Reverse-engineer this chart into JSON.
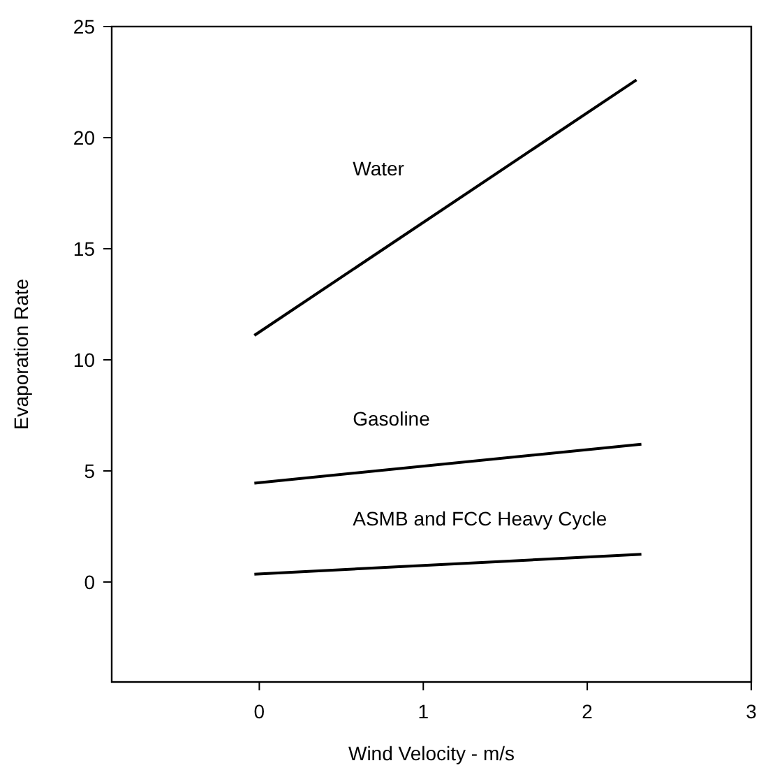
{
  "chart_data": {
    "type": "line",
    "xlabel": "Wind Velocity - m/s",
    "ylabel": "Evaporation Rate",
    "xlim": [
      -0.9,
      3
    ],
    "ylim": [
      -4.5,
      25
    ],
    "xticks": [
      0,
      1,
      2,
      3
    ],
    "yticks": [
      0,
      5,
      10,
      15,
      20,
      25
    ],
    "grid": false,
    "marker": "none",
    "line_style": "solid",
    "series": [
      {
        "name": "Water",
        "color": "#000000",
        "x": [
          -0.03,
          2.3
        ],
        "values": [
          11.1,
          22.6
        ]
      },
      {
        "name": "Gasoline",
        "color": "#000000",
        "x": [
          -0.03,
          2.33
        ],
        "values": [
          4.45,
          6.2
        ]
      },
      {
        "name": "ASMB and FCC Heavy Cycle",
        "color": "#000000",
        "x": [
          -0.03,
          2.33
        ],
        "values": [
          0.35,
          1.25
        ]
      }
    ]
  }
}
